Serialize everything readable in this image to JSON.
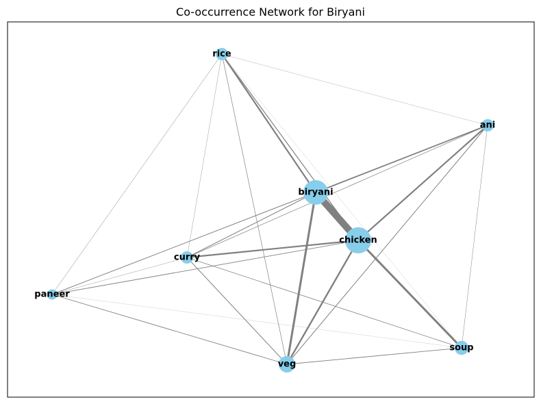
{
  "title": "Co-occurrence Network for Biryani",
  "colors": {
    "node": "#87ceeb",
    "edge": "#808080",
    "frame": "#000000",
    "background": "#ffffff"
  },
  "nodes": [
    {
      "id": "rice",
      "label": "rice",
      "weight": 1
    },
    {
      "id": "ani",
      "label": "ani",
      "weight": 1
    },
    {
      "id": "biryani",
      "label": "biryani",
      "weight": 4
    },
    {
      "id": "chicken",
      "label": "chicken",
      "weight": 4.5
    },
    {
      "id": "curry",
      "label": "curry",
      "weight": 1
    },
    {
      "id": "paneer",
      "label": "paneer",
      "weight": 0.7
    },
    {
      "id": "veg",
      "label": "veg",
      "weight": 1.8
    },
    {
      "id": "soup",
      "label": "soup",
      "weight": 1.3
    }
  ],
  "edges": [
    {
      "source": "biryani",
      "target": "chicken",
      "weight": 10
    },
    {
      "source": "rice",
      "target": "biryani",
      "weight": 2.2
    },
    {
      "source": "rice",
      "target": "chicken",
      "weight": 1.2
    },
    {
      "source": "rice",
      "target": "curry",
      "weight": 0.4
    },
    {
      "source": "rice",
      "target": "paneer",
      "weight": 0.5
    },
    {
      "source": "rice",
      "target": "veg",
      "weight": 0.7
    },
    {
      "source": "rice",
      "target": "ani",
      "weight": 0.3
    },
    {
      "source": "rice",
      "target": "soup",
      "weight": 0.2
    },
    {
      "source": "ani",
      "target": "biryani",
      "weight": 1.8
    },
    {
      "source": "ani",
      "target": "chicken",
      "weight": 2.2
    },
    {
      "source": "ani",
      "target": "curry",
      "weight": 0.7
    },
    {
      "source": "ani",
      "target": "veg",
      "weight": 1.0
    },
    {
      "source": "ani",
      "target": "soup",
      "weight": 0.5
    },
    {
      "source": "biryani",
      "target": "curry",
      "weight": 1.0
    },
    {
      "source": "biryani",
      "target": "paneer",
      "weight": 1.0
    },
    {
      "source": "biryani",
      "target": "veg",
      "weight": 3.0
    },
    {
      "source": "chicken",
      "target": "curry",
      "weight": 2.2
    },
    {
      "source": "chicken",
      "target": "paneer",
      "weight": 0.9
    },
    {
      "source": "chicken",
      "target": "veg",
      "weight": 2.4
    },
    {
      "source": "chicken",
      "target": "soup",
      "weight": 3.0
    },
    {
      "source": "curry",
      "target": "paneer",
      "weight": 0.4
    },
    {
      "source": "curry",
      "target": "veg",
      "weight": 1.0
    },
    {
      "source": "curry",
      "target": "soup",
      "weight": 0.8
    },
    {
      "source": "paneer",
      "target": "veg",
      "weight": 0.9
    },
    {
      "source": "paneer",
      "target": "soup",
      "weight": 0.2
    },
    {
      "source": "veg",
      "target": "soup",
      "weight": 0.9
    }
  ]
}
